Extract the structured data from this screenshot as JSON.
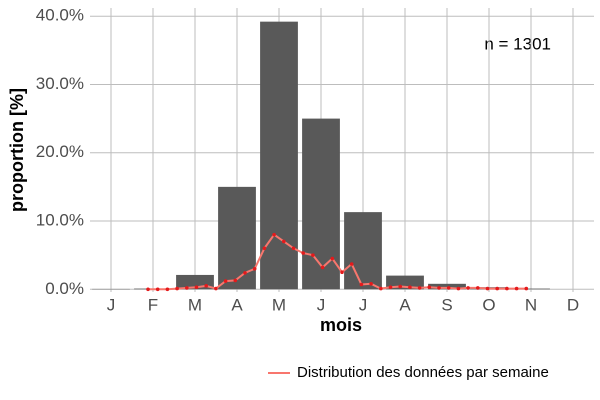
{
  "chart_data": {
    "type": "bar",
    "annotation": "n = 1301",
    "x_label": "mois",
    "y_label": "proportion [%]",
    "categories": [
      "J",
      "F",
      "M",
      "A",
      "M",
      "J",
      "J",
      "A",
      "S",
      "O",
      "N",
      "D"
    ],
    "values": [
      0.05,
      0.1,
      2.1,
      15.0,
      39.2,
      25.0,
      11.3,
      2.0,
      0.8,
      0.3,
      0.1,
      0
    ],
    "color": "#595959",
    "ylim": [
      -0.4,
      41.2
    ],
    "yticks": [
      {
        "value": 0,
        "label": "0.0%"
      },
      {
        "value": 10,
        "label": "10.0%"
      },
      {
        "value": 20,
        "label": "20.0%"
      },
      {
        "value": 30,
        "label": "30.0%"
      },
      {
        "value": 40,
        "label": "40.0%"
      }
    ],
    "grid": true,
    "line_series": {
      "name": "Distribution des données par semaine",
      "color": "#f8766d",
      "point_color": "#e41a1c",
      "values": [
        0,
        0,
        0,
        0.1,
        0.2,
        0.3,
        0.5,
        0.1,
        1.2,
        1.3,
        2.4,
        3.0,
        6.0,
        8.0,
        7.0,
        6.0,
        5.3,
        5.0,
        3.2,
        4.5,
        2.5,
        3.7,
        0.7,
        0.8,
        0.1,
        0.3,
        0.4,
        0.3,
        0.2,
        0.3,
        0.2,
        0.2,
        0.1,
        0.2,
        0.2,
        0.1,
        0.1,
        0.1,
        0.1,
        0.1
      ]
    },
    "legend_position": "bottom-right"
  }
}
